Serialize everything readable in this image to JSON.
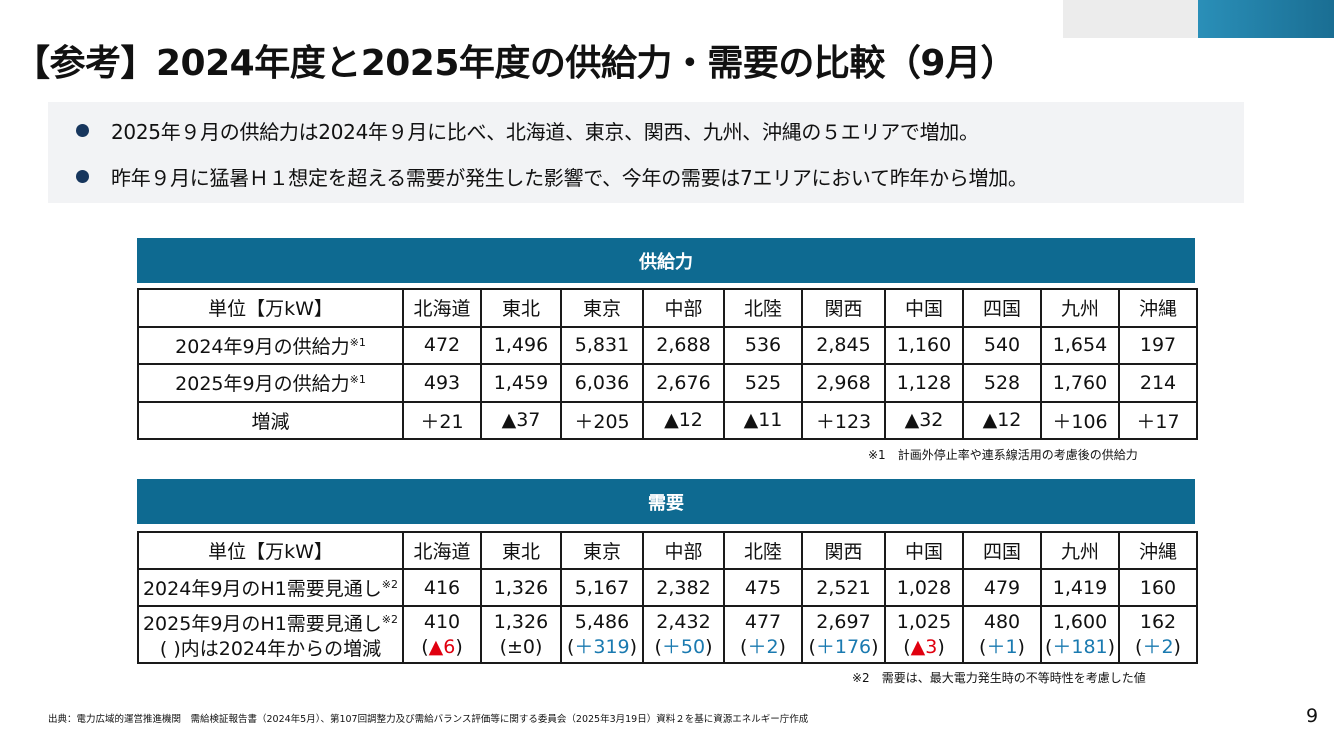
{
  "title": "【参考】2024年度と2025年度の供給力・需要の比較（9月）",
  "bullets": [
    "2025年９月の供給力は2024年９月に比べ、北海道、東京、関西、九州、沖縄の５エリアで増加。",
    "昨年９月に猛暑Ｈ１想定を超える需要が発生した影響で、今年の需要は7エリアにおいて昨年から増加。"
  ],
  "supply": {
    "heading": "供給力",
    "unit_label": "単位【万kW】",
    "areas": [
      "北海道",
      "東北",
      "東京",
      "中部",
      "北陸",
      "関西",
      "中国",
      "四国",
      "九州",
      "沖縄"
    ],
    "row_2024_label": "2024年9月の供給力",
    "row_2024_mark": "※1",
    "row_2024": [
      "472",
      "1,496",
      "5,831",
      "2,688",
      "536",
      "2,845",
      "1,160",
      "540",
      "1,654",
      "197"
    ],
    "row_2025_label": "2025年9月の供給力",
    "row_2025_mark": "※1",
    "row_2025": [
      "493",
      "1,459",
      "6,036",
      "2,676",
      "525",
      "2,968",
      "1,128",
      "528",
      "1,760",
      "214"
    ],
    "change_label": "増減",
    "change": [
      "＋21",
      "▲37",
      "＋205",
      "▲12",
      "▲11",
      "＋123",
      "▲32",
      "▲12",
      "＋106",
      "＋17"
    ],
    "note": "※1　計画外停止率や連系線活用の考慮後の供給力"
  },
  "demand": {
    "heading": "需要",
    "unit_label": "単位【万kW】",
    "areas": [
      "北海道",
      "東北",
      "東京",
      "中部",
      "北陸",
      "関西",
      "中国",
      "四国",
      "九州",
      "沖縄"
    ],
    "row_2024_label": "2024年9月のH1需要見通し",
    "row_2024_mark": "※2",
    "row_2024": [
      "416",
      "1,326",
      "5,167",
      "2,382",
      "475",
      "2,521",
      "1,028",
      "479",
      "1,419",
      "160"
    ],
    "row_2025_label": "2025年9月のH1需要見通し",
    "row_2025_mark": "※2",
    "row_2025_sublabel": "( )内は2024年からの増減",
    "row_2025": [
      "410",
      "1,326",
      "5,486",
      "2,432",
      "477",
      "2,697",
      "1,025",
      "480",
      "1,600",
      "162"
    ],
    "row_2025_change": [
      "▲6",
      "±0",
      "＋319",
      "＋50",
      "＋2",
      "＋176",
      "▲3",
      "＋1",
      "＋181",
      "＋2"
    ],
    "note": "※2　需要は、最大電力発生時の不等時性を考慮した値"
  },
  "source": "出典：電力広域的運営推進機関　需給検証報告書（2024年5月）、第107回調整力及び需給バランス評価等に関する委員会（2025年3月19日）資料２を基に資源エネルギー庁作成",
  "page_number": "9",
  "colors": {
    "section_bar": "#0e6a91",
    "increase": "#1a7ab0",
    "decrease": "#e0000f",
    "bullet": "#17365d"
  }
}
